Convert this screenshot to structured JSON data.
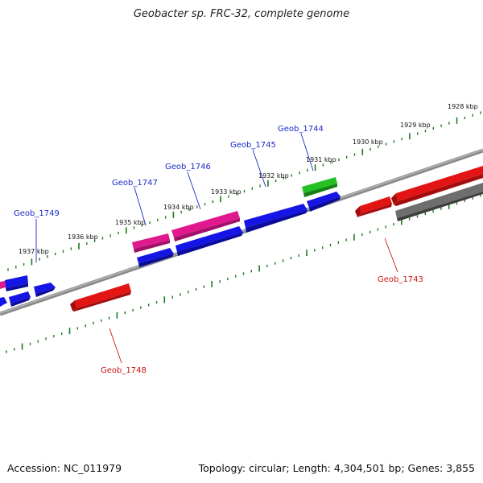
{
  "title": "Geobacter sp. FRC-32, complete genome",
  "footer": {
    "accession": "Accession: NC_011979",
    "summary": "Topology: circular; Length: 4,304,501 bp; Genes: 3,855"
  },
  "colors": {
    "blue": "#1515e6",
    "red": "#e31414",
    "magenta": "#e0198f",
    "green": "#25c025",
    "gray": "#6e6e6e",
    "tick": "#1e7a1e",
    "blue_text": "#1a2bc8",
    "red_text": "#c81414"
  },
  "scale_labels": [
    "1928 kbp",
    "1929 kbp",
    "1930 kbp",
    "1931 kbp",
    "1932 kbp",
    "1933 kbp",
    "1934 kbp",
    "1935 kbp",
    "1936 kbp",
    "1937 kbp"
  ],
  "gene_labels": {
    "top": [
      "Geob_1744",
      "Geob_1745",
      "Geob_1746",
      "Geob_1747",
      "Geob_1749"
    ],
    "bottom": [
      "Geob_1743",
      "Geob_1748"
    ]
  }
}
